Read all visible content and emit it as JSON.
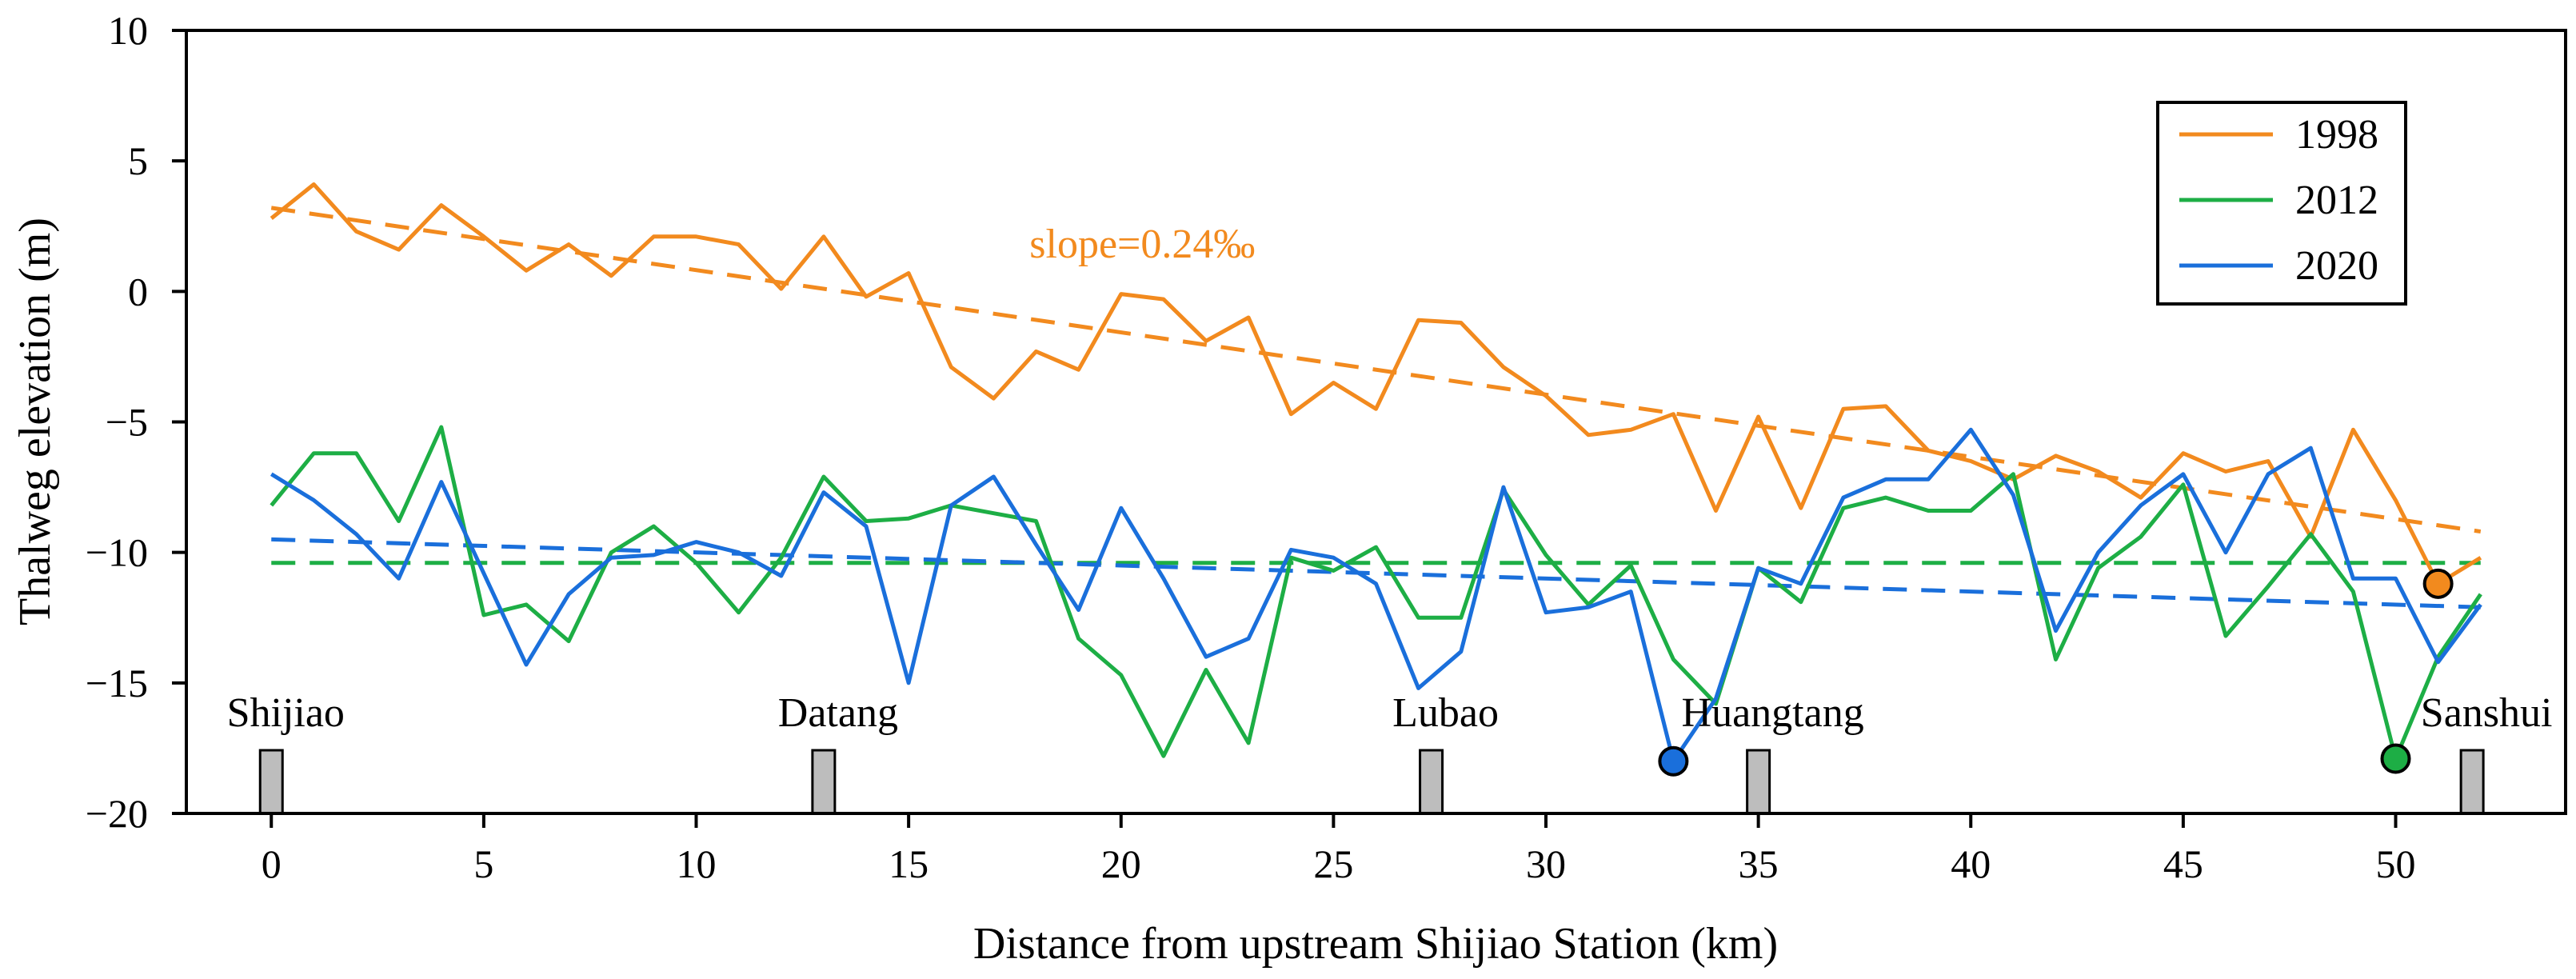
{
  "chart_data": {
    "type": "line",
    "title": "",
    "xlabel": "Distance from upstream Shijiao Station (km)",
    "ylabel": "Thalweg elevation (m)",
    "xlim": [
      -2,
      54
    ],
    "ylim": [
      -20,
      10
    ],
    "xticks": [
      0,
      5,
      10,
      15,
      20,
      25,
      30,
      35,
      40,
      45,
      50
    ],
    "yticks": [
      10,
      5,
      0,
      -5,
      -10,
      -15,
      -20
    ],
    "legend_position": "top-right",
    "series": [
      {
        "name": "1998",
        "color": "#F28A1E",
        "x": [
          0,
          1,
          2,
          3,
          4,
          5,
          6,
          7,
          8,
          9,
          10,
          11,
          12,
          13,
          14,
          15,
          16,
          17,
          18,
          19,
          20,
          21,
          22,
          23,
          24,
          25,
          26,
          27,
          28,
          29,
          30,
          31,
          32,
          33,
          34,
          35,
          36,
          37,
          38,
          39,
          40,
          41,
          42,
          43,
          44,
          45,
          46,
          47,
          48,
          49,
          50,
          51,
          52
        ],
        "values": [
          2.8,
          4.1,
          2.3,
          1.6,
          3.3,
          2.1,
          0.8,
          1.8,
          0.6,
          2.1,
          2.1,
          1.8,
          0.1,
          2.1,
          -0.2,
          0.7,
          -2.9,
          -4.1,
          -2.3,
          -3.0,
          -0.1,
          -0.3,
          -1.9,
          -1.0,
          -4.7,
          -3.5,
          -4.5,
          -1.1,
          -1.2,
          -2.9,
          -4.0,
          -5.5,
          -5.3,
          -4.7,
          -8.4,
          -4.8,
          -8.3,
          -4.5,
          -4.4,
          -6.1,
          -6.5,
          -7.2,
          -6.3,
          -6.9,
          -7.9,
          -6.2,
          -6.9,
          -6.5,
          -9.4,
          -5.3,
          -8.0,
          -11.2,
          -10.2
        ]
      },
      {
        "name": "2012",
        "color": "#1DAE45",
        "x": [
          0,
          1,
          2,
          3,
          4,
          5,
          6,
          7,
          8,
          9,
          10,
          11,
          12,
          13,
          14,
          15,
          16,
          17,
          18,
          19,
          20,
          21,
          22,
          23,
          24,
          25,
          26,
          27,
          28,
          29,
          30,
          31,
          32,
          33,
          34,
          35,
          36,
          37,
          38,
          39,
          40,
          41,
          42,
          43,
          44,
          45,
          46,
          47,
          48,
          49,
          50,
          51,
          52
        ],
        "values": [
          -8.2,
          -6.2,
          -6.2,
          -8.8,
          -5.2,
          -12.4,
          -12.0,
          -13.4,
          -10.0,
          -9.0,
          -10.4,
          -12.3,
          -10.2,
          -7.1,
          -8.8,
          -8.7,
          -8.2,
          -8.5,
          -8.8,
          -13.3,
          -14.7,
          -17.8,
          -14.5,
          -17.3,
          -10.2,
          -10.7,
          -9.8,
          -12.5,
          -12.5,
          -7.6,
          -10.1,
          -12.0,
          -10.5,
          -14.1,
          -15.8,
          -10.6,
          -11.9,
          -8.3,
          -7.9,
          -8.4,
          -8.4,
          -7.0,
          -14.1,
          -10.6,
          -9.4,
          -7.4,
          -13.2,
          -11.3,
          -9.3,
          -11.5,
          -17.9,
          -14.0,
          -11.6
        ]
      },
      {
        "name": "2020",
        "color": "#1A6FDB",
        "x": [
          0,
          1,
          2,
          3,
          4,
          5,
          6,
          7,
          8,
          9,
          10,
          11,
          12,
          13,
          14,
          15,
          16,
          17,
          18,
          19,
          20,
          21,
          22,
          23,
          24,
          25,
          26,
          27,
          28,
          29,
          30,
          31,
          32,
          33,
          34,
          35,
          36,
          37,
          38,
          39,
          40,
          41,
          42,
          43,
          44,
          45,
          46,
          47,
          48,
          49,
          50,
          51,
          52
        ],
        "values": [
          -7.0,
          -8.0,
          -9.3,
          -11.0,
          -7.3,
          -10.8,
          -14.3,
          -11.6,
          -10.2,
          -10.1,
          -9.6,
          -10.0,
          -10.9,
          -7.7,
          -9.0,
          -15.0,
          -8.2,
          -7.1,
          -9.7,
          -12.2,
          -8.3,
          -11.0,
          -14.0,
          -13.3,
          -9.9,
          -10.2,
          -11.2,
          -15.2,
          -13.8,
          -7.5,
          -12.3,
          -12.1,
          -11.5,
          -18.0,
          -15.6,
          -10.6,
          -11.2,
          -7.9,
          -7.2,
          -7.2,
          -5.3,
          -7.8,
          -13.0,
          -10.0,
          -8.2,
          -7.0,
          -10.0,
          -7.0,
          -6.0,
          -11.0,
          -11.0,
          -14.2,
          -12.0
        ]
      }
    ],
    "trendlines": [
      {
        "series": "1998",
        "x": [
          0,
          52
        ],
        "values": [
          3.2,
          -9.2
        ],
        "style": "dashed"
      },
      {
        "series": "2012",
        "x": [
          0,
          52
        ],
        "values": [
          -10.4,
          -10.4
        ],
        "style": "dashed"
      },
      {
        "series": "2020",
        "x": [
          0,
          52
        ],
        "values": [
          -9.5,
          -12.1
        ],
        "style": "dashed"
      }
    ],
    "markers": [
      {
        "series": "2020",
        "x": 33,
        "value": -18.0
      },
      {
        "series": "2012",
        "x": 50,
        "value": -17.9
      },
      {
        "series": "1998",
        "x": 51,
        "value": -11.2
      }
    ],
    "stations": [
      {
        "name": "Shijiao",
        "x": 0
      },
      {
        "name": "Datang",
        "x": 13
      },
      {
        "name": "Lubao",
        "x": 27.3
      },
      {
        "name": "Huangtang",
        "x": 35
      },
      {
        "name": "Sanshui",
        "x": 51.8
      }
    ],
    "annotation": {
      "text": "slope=0.24‰",
      "x": 20.5,
      "value": 1.3,
      "color": "#F28A1E"
    }
  }
}
